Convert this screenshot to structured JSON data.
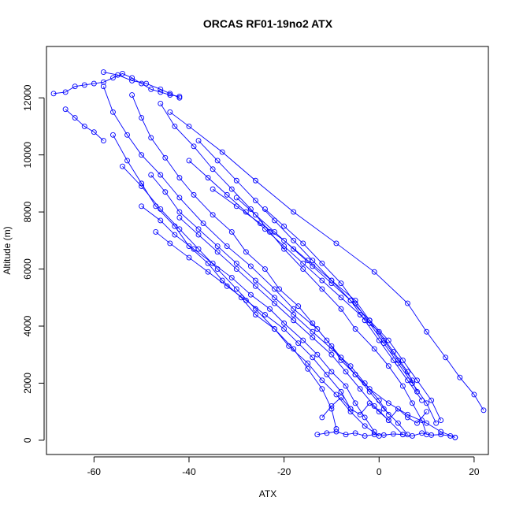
{
  "chart_data": {
    "type": "line",
    "title": "ORCAS RF01-19no2 ATX",
    "xlabel": "ATX",
    "ylabel": "Altitude (m)",
    "xlim": [
      -70,
      23
    ],
    "ylim": [
      -500,
      13800
    ],
    "xticks": [
      -60,
      -40,
      -20,
      0,
      20
    ],
    "yticks": [
      0,
      2000,
      4000,
      6000,
      8000,
      10000,
      12000
    ],
    "marker": "open-circle",
    "grid": false,
    "legend": "none",
    "color": "#0000ff",
    "series": [
      {
        "x": [
          -68.5,
          -66,
          -64,
          -62,
          -60,
          -58,
          -56,
          -54,
          -52,
          -50,
          -48,
          -46,
          -44,
          -42
        ],
        "y": [
          12150,
          12200,
          12400,
          12450,
          12500,
          12550,
          12700,
          12850,
          12700,
          12500,
          12300,
          12200,
          12100,
          12050
        ]
      },
      {
        "x": [
          -58,
          -56,
          -53,
          -50,
          -46,
          -42,
          -37,
          -32,
          -27,
          -22,
          -18,
          -13,
          -10,
          -8,
          -5,
          -2,
          2,
          6,
          10,
          13,
          16
        ],
        "y": [
          12400,
          11500,
          10700,
          10000,
          9300,
          8500,
          7600,
          6800,
          6100,
          5300,
          4600,
          3900,
          3300,
          2800,
          2300,
          1800,
          1300,
          900,
          600,
          300,
          100
        ]
      },
      {
        "x": [
          -44,
          -40,
          -33,
          -26,
          -18,
          -9,
          -1,
          6,
          10,
          14,
          17,
          20,
          22
        ],
        "y": [
          11500,
          11000,
          10100,
          9100,
          8000,
          6900,
          5900,
          4800,
          3800,
          2900,
          2200,
          1600,
          1050
        ]
      },
      {
        "x": [
          -46,
          -43,
          -39,
          -35,
          -31,
          -27,
          -23,
          -20,
          -16,
          -12,
          -8,
          -5,
          -1,
          2,
          5,
          7,
          9,
          10
        ],
        "y": [
          11800,
          11000,
          10300,
          9500,
          8800,
          8100,
          7300,
          6700,
          6000,
          5300,
          4600,
          3900,
          3200,
          2600,
          1900,
          1300,
          700,
          200
        ]
      },
      {
        "x": [
          -52,
          -50,
          -48,
          -45,
          -42,
          -39,
          -35,
          -31,
          -28,
          -24,
          -21,
          -17,
          -14,
          -11,
          -8,
          -5,
          -2,
          1,
          4,
          6
        ],
        "y": [
          12100,
          11300,
          10600,
          9900,
          9200,
          8600,
          7900,
          7300,
          6600,
          6000,
          5300,
          4700,
          4100,
          3500,
          2900,
          2300,
          1700,
          1100,
          600,
          200
        ]
      },
      {
        "x": [
          -56,
          -53,
          -50,
          -47,
          -43,
          -40,
          -36,
          -33,
          -29,
          -26,
          -22,
          -19,
          -15,
          -12,
          -9,
          -6,
          -3,
          0
        ],
        "y": [
          10700,
          9800,
          9000,
          8200,
          7500,
          6800,
          6200,
          5600,
          5000,
          4400,
          3900,
          3300,
          2700,
          2100,
          1600,
          1000,
          500,
          150
        ]
      },
      {
        "x": [
          -54,
          -50,
          -46,
          -42,
          -38,
          -34,
          -30,
          -26,
          -22,
          -18,
          -15,
          -12,
          -10,
          -9
        ],
        "y": [
          9600,
          8900,
          8100,
          7400,
          6700,
          6000,
          5300,
          4600,
          3900,
          3200,
          2500,
          1800,
          1100,
          400
        ]
      },
      {
        "x": [
          -48,
          -45,
          -42,
          -38,
          -34,
          -30,
          -26,
          -22,
          -18,
          -14,
          -10,
          -6,
          -3,
          0,
          2
        ],
        "y": [
          9300,
          8700,
          8000,
          7400,
          6800,
          6200,
          5600,
          5000,
          4400,
          3800,
          3200,
          2600,
          2000,
          1400,
          900
        ]
      },
      {
        "x": [
          -40,
          -36,
          -32,
          -28,
          -24,
          -20,
          -16,
          -12,
          -8,
          -4,
          0,
          3,
          6,
          8
        ],
        "y": [
          9800,
          9200,
          8600,
          8000,
          7400,
          6800,
          6200,
          5600,
          5000,
          4400,
          3800,
          3100,
          2400,
          1700
        ]
      },
      {
        "x": [
          -35,
          -30,
          -25,
          -20,
          -15,
          -10,
          -5,
          -2,
          1,
          4,
          7
        ],
        "y": [
          8800,
          8200,
          7600,
          7000,
          6300,
          5600,
          4900,
          4200,
          3500,
          2800,
          2100
        ]
      },
      {
        "x": [
          -50,
          -46,
          -43,
          -39,
          -35,
          -31,
          -27,
          -23,
          -20,
          -16,
          -13,
          -10,
          -7,
          -5,
          -3,
          -1
        ],
        "y": [
          8200,
          7700,
          7200,
          6700,
          6200,
          5700,
          5100,
          4600,
          4100,
          3500,
          3000,
          2400,
          1900,
          1300,
          800,
          300
        ]
      },
      {
        "x": [
          -47,
          -44,
          -40,
          -36,
          -32,
          -28,
          -24,
          -20,
          -17,
          -14,
          -11,
          -8,
          -6
        ],
        "y": [
          7300,
          6900,
          6400,
          5900,
          5400,
          4900,
          4400,
          3900,
          3400,
          2900,
          2300,
          1700,
          1100
        ]
      },
      {
        "x": [
          -38,
          -34,
          -30,
          -26,
          -22,
          -18,
          -14,
          -10,
          -6,
          -2,
          2,
          5,
          8,
          11,
          13
        ],
        "y": [
          10500,
          9800,
          9100,
          8400,
          7700,
          7000,
          6300,
          5600,
          4900,
          4200,
          3500,
          2800,
          2100,
          1400,
          700
        ]
      },
      {
        "x": [
          -30,
          -26,
          -22,
          -18,
          -14,
          -10,
          -6,
          -3,
          0,
          3,
          6,
          9
        ],
        "y": [
          8500,
          7900,
          7300,
          6700,
          6100,
          5500,
          4900,
          4200,
          3500,
          2800,
          2100,
          1400
        ]
      },
      {
        "x": [
          -13,
          -11,
          -9,
          -7,
          -5,
          -3,
          -1,
          1,
          3,
          5,
          7,
          9,
          11,
          13,
          15,
          16
        ],
        "y": [
          200,
          250,
          300,
          200,
          250,
          150,
          200,
          180,
          220,
          200,
          150,
          250,
          180,
          200,
          150,
          100
        ]
      },
      {
        "x": [
          -12,
          -10,
          -8,
          -6,
          -4,
          -2,
          0,
          2,
          4,
          6,
          8,
          10
        ],
        "y": [
          800,
          1200,
          1500,
          1100,
          900,
          1300,
          1000,
          700,
          1100,
          800,
          600,
          1000
        ]
      },
      {
        "x": [
          -58,
          -55,
          -52,
          -49,
          -46,
          -44,
          -42
        ],
        "y": [
          12900,
          12800,
          12600,
          12500,
          12300,
          12150,
          12000
        ]
      },
      {
        "x": [
          -66,
          -64,
          -62,
          -60,
          -58
        ],
        "y": [
          11600,
          11300,
          11000,
          10800,
          10500
        ]
      },
      {
        "x": [
          -24,
          -20,
          -16,
          -12,
          -8,
          -5,
          -2,
          1,
          4,
          7,
          10,
          12
        ],
        "y": [
          8100,
          7500,
          6900,
          6200,
          5500,
          4800,
          4100,
          3400,
          2700,
          2000,
          1300,
          600
        ]
      },
      {
        "x": [
          -42,
          -38,
          -34,
          -30,
          -26,
          -22,
          -18,
          -14,
          -10,
          -7,
          -4,
          -1,
          2,
          5
        ],
        "y": [
          7800,
          7200,
          6600,
          6000,
          5400,
          4800,
          4200,
          3600,
          3000,
          2400,
          1800,
          1200,
          700,
          200
        ]
      }
    ]
  }
}
